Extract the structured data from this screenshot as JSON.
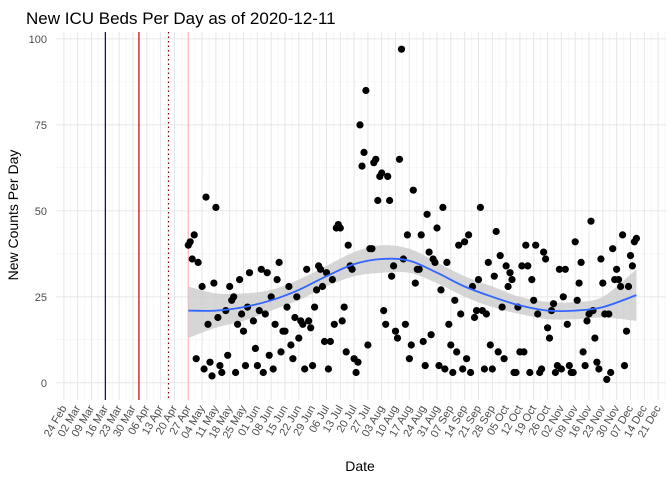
{
  "chart_data": {
    "type": "scatter",
    "title": "New ICU Beds Per Day as of 2020-12-11",
    "xlabel": "Date",
    "ylabel": "New Counts Per Day",
    "x_type": "date",
    "xlim": [
      "2020-02-20",
      "2020-12-25"
    ],
    "ylim": [
      -5,
      102
    ],
    "y_ticks": [
      0,
      25,
      50,
      75,
      100
    ],
    "x_ticks": [
      "2020-02-24",
      "2020-03-02",
      "2020-03-09",
      "2020-03-16",
      "2020-03-23",
      "2020-03-30",
      "2020-04-06",
      "2020-04-13",
      "2020-04-20",
      "2020-04-27",
      "2020-05-04",
      "2020-05-11",
      "2020-05-18",
      "2020-05-25",
      "2020-06-01",
      "2020-06-08",
      "2020-06-15",
      "2020-06-22",
      "2020-06-29",
      "2020-07-06",
      "2020-07-13",
      "2020-07-20",
      "2020-07-27",
      "2020-08-03",
      "2020-08-10",
      "2020-08-17",
      "2020-08-24",
      "2020-08-31",
      "2020-09-07",
      "2020-09-14",
      "2020-09-21",
      "2020-09-28",
      "2020-10-05",
      "2020-10-12",
      "2020-10-19",
      "2020-10-26",
      "2020-11-02",
      "2020-11-09",
      "2020-11-16",
      "2020-11-23",
      "2020-11-30",
      "2020-12-07",
      "2020-12-14",
      "2020-12-21"
    ],
    "x_tick_labels": [
      "24 Feb",
      "02 Mar",
      "09 Mar",
      "16 Mar",
      "23 Mar",
      "30 Mar",
      "06 Apr",
      "13 Apr",
      "20 Apr",
      "27 Apr",
      "04 May",
      "11 May",
      "18 May",
      "25 May",
      "01 Jun",
      "08 Jun",
      "15 Jun",
      "22 Jun",
      "29 Jun",
      "06 Jul",
      "13 Jul",
      "20 Jul",
      "27 Jul",
      "03 Aug",
      "10 Aug",
      "17 Aug",
      "24 Aug",
      "31 Aug",
      "07 Sep",
      "14 Sep",
      "21 Sep",
      "28 Sep",
      "05 Oct",
      "12 Oct",
      "19 Oct",
      "26 Oct",
      "02 Nov",
      "09 Nov",
      "16 Nov",
      "23 Nov",
      "30 Nov",
      "07 Dec",
      "14 Dec",
      "21 Dec"
    ],
    "grid": true,
    "vlines": [
      {
        "date": "2020-03-16",
        "color": "#000080",
        "style": "solid"
      },
      {
        "date": "2020-04-02",
        "color": "#cc0000",
        "style": "solid"
      },
      {
        "date": "2020-04-17",
        "color": "#8b0000",
        "style": "dotted"
      },
      {
        "date": "2020-04-27",
        "color": "#ffb6c1",
        "style": "solid"
      }
    ],
    "series": [
      {
        "points": [
          [
            "2020-04-27",
            40
          ],
          [
            "2020-04-28",
            41
          ],
          [
            "2020-04-29",
            36
          ],
          [
            "2020-04-30",
            43
          ],
          [
            "2020-05-01",
            7
          ],
          [
            "2020-05-02",
            35
          ],
          [
            "2020-05-04",
            28
          ],
          [
            "2020-05-05",
            4
          ],
          [
            "2020-05-06",
            54
          ],
          [
            "2020-05-07",
            17
          ],
          [
            "2020-05-08",
            6
          ],
          [
            "2020-05-09",
            2
          ],
          [
            "2020-05-10",
            29
          ],
          [
            "2020-05-11",
            51
          ],
          [
            "2020-05-12",
            19
          ],
          [
            "2020-05-13",
            5
          ],
          [
            "2020-05-14",
            3
          ],
          [
            "2020-05-16",
            21
          ],
          [
            "2020-05-17",
            8
          ],
          [
            "2020-05-18",
            28
          ],
          [
            "2020-05-19",
            24
          ],
          [
            "2020-05-20",
            25
          ],
          [
            "2020-05-21",
            3
          ],
          [
            "2020-05-22",
            17
          ],
          [
            "2020-05-23",
            30
          ],
          [
            "2020-05-24",
            20
          ],
          [
            "2020-05-25",
            15
          ],
          [
            "2020-05-26",
            5
          ],
          [
            "2020-05-27",
            22
          ],
          [
            "2020-05-28",
            32
          ],
          [
            "2020-05-30",
            18
          ],
          [
            "2020-05-31",
            10
          ],
          [
            "2020-06-01",
            5
          ],
          [
            "2020-06-02",
            21
          ],
          [
            "2020-06-03",
            33
          ],
          [
            "2020-06-04",
            3
          ],
          [
            "2020-06-05",
            20
          ],
          [
            "2020-06-06",
            32
          ],
          [
            "2020-06-07",
            8
          ],
          [
            "2020-06-08",
            25
          ],
          [
            "2020-06-09",
            4
          ],
          [
            "2020-06-10",
            17
          ],
          [
            "2020-06-11",
            30
          ],
          [
            "2020-06-12",
            35
          ],
          [
            "2020-06-13",
            9
          ],
          [
            "2020-06-14",
            15
          ],
          [
            "2020-06-15",
            15
          ],
          [
            "2020-06-16",
            22
          ],
          [
            "2020-06-17",
            28
          ],
          [
            "2020-06-18",
            11
          ],
          [
            "2020-06-19",
            7
          ],
          [
            "2020-06-20",
            19
          ],
          [
            "2020-06-21",
            25
          ],
          [
            "2020-06-22",
            13
          ],
          [
            "2020-06-23",
            18
          ],
          [
            "2020-06-24",
            17
          ],
          [
            "2020-06-25",
            4
          ],
          [
            "2020-06-26",
            33
          ],
          [
            "2020-06-27",
            18
          ],
          [
            "2020-06-28",
            16
          ],
          [
            "2020-06-29",
            5
          ],
          [
            "2020-06-30",
            22
          ],
          [
            "2020-07-01",
            27
          ],
          [
            "2020-07-02",
            34
          ],
          [
            "2020-07-03",
            33
          ],
          [
            "2020-07-04",
            28
          ],
          [
            "2020-07-05",
            12
          ],
          [
            "2020-07-06",
            32
          ],
          [
            "2020-07-07",
            4
          ],
          [
            "2020-07-08",
            12
          ],
          [
            "2020-07-09",
            30
          ],
          [
            "2020-07-10",
            17
          ],
          [
            "2020-07-11",
            45
          ],
          [
            "2020-07-12",
            46
          ],
          [
            "2020-07-13",
            45
          ],
          [
            "2020-07-14",
            18
          ],
          [
            "2020-07-15",
            22
          ],
          [
            "2020-07-16",
            9
          ],
          [
            "2020-07-17",
            40
          ],
          [
            "2020-07-18",
            34
          ],
          [
            "2020-07-19",
            33
          ],
          [
            "2020-07-20",
            7
          ],
          [
            "2020-07-21",
            3
          ],
          [
            "2020-07-22",
            6
          ],
          [
            "2020-07-23",
            75
          ],
          [
            "2020-07-24",
            63
          ],
          [
            "2020-07-25",
            67
          ],
          [
            "2020-07-26",
            85
          ],
          [
            "2020-07-27",
            11
          ],
          [
            "2020-07-28",
            39
          ],
          [
            "2020-07-29",
            39
          ],
          [
            "2020-07-30",
            64
          ],
          [
            "2020-07-31",
            65
          ],
          [
            "2020-08-01",
            53
          ],
          [
            "2020-08-02",
            60
          ],
          [
            "2020-08-03",
            61
          ],
          [
            "2020-08-04",
            21
          ],
          [
            "2020-08-05",
            17
          ],
          [
            "2020-08-06",
            60
          ],
          [
            "2020-08-07",
            53
          ],
          [
            "2020-08-08",
            31
          ],
          [
            "2020-08-09",
            34
          ],
          [
            "2020-08-10",
            15
          ],
          [
            "2020-08-11",
            13
          ],
          [
            "2020-08-12",
            65
          ],
          [
            "2020-08-13",
            97
          ],
          [
            "2020-08-14",
            36
          ],
          [
            "2020-08-15",
            17
          ],
          [
            "2020-08-16",
            43
          ],
          [
            "2020-08-17",
            7
          ],
          [
            "2020-08-18",
            11
          ],
          [
            "2020-08-19",
            56
          ],
          [
            "2020-08-20",
            29
          ],
          [
            "2020-08-21",
            33
          ],
          [
            "2020-08-22",
            33
          ],
          [
            "2020-08-23",
            43
          ],
          [
            "2020-08-24",
            12
          ],
          [
            "2020-08-25",
            5
          ],
          [
            "2020-08-26",
            49
          ],
          [
            "2020-08-27",
            38
          ],
          [
            "2020-08-28",
            14
          ],
          [
            "2020-08-29",
            36
          ],
          [
            "2020-08-30",
            35
          ],
          [
            "2020-08-31",
            45
          ],
          [
            "2020-09-01",
            5
          ],
          [
            "2020-09-02",
            27
          ],
          [
            "2020-09-03",
            51
          ],
          [
            "2020-09-04",
            4
          ],
          [
            "2020-09-05",
            35
          ],
          [
            "2020-09-06",
            17
          ],
          [
            "2020-09-07",
            11
          ],
          [
            "2020-09-08",
            3
          ],
          [
            "2020-09-09",
            24
          ],
          [
            "2020-09-10",
            9
          ],
          [
            "2020-09-11",
            40
          ],
          [
            "2020-09-12",
            20
          ],
          [
            "2020-09-13",
            4
          ],
          [
            "2020-09-14",
            41
          ],
          [
            "2020-09-15",
            7
          ],
          [
            "2020-09-16",
            43
          ],
          [
            "2020-09-17",
            3
          ],
          [
            "2020-09-18",
            28
          ],
          [
            "2020-09-19",
            19
          ],
          [
            "2020-09-20",
            21
          ],
          [
            "2020-09-21",
            30
          ],
          [
            "2020-09-22",
            51
          ],
          [
            "2020-09-23",
            21
          ],
          [
            "2020-09-24",
            4
          ],
          [
            "2020-09-25",
            20
          ],
          [
            "2020-09-26",
            35
          ],
          [
            "2020-09-27",
            11
          ],
          [
            "2020-09-28",
            4
          ],
          [
            "2020-09-29",
            31
          ],
          [
            "2020-09-30",
            44
          ],
          [
            "2020-10-01",
            9
          ],
          [
            "2020-10-02",
            37
          ],
          [
            "2020-10-03",
            22
          ],
          [
            "2020-10-04",
            7
          ],
          [
            "2020-10-05",
            34
          ],
          [
            "2020-10-06",
            28
          ],
          [
            "2020-10-07",
            32
          ],
          [
            "2020-10-08",
            30
          ],
          [
            "2020-10-09",
            3
          ],
          [
            "2020-10-10",
            3
          ],
          [
            "2020-10-11",
            22
          ],
          [
            "2020-10-12",
            9
          ],
          [
            "2020-10-13",
            34
          ],
          [
            "2020-10-14",
            9
          ],
          [
            "2020-10-15",
            40
          ],
          [
            "2020-10-16",
            34
          ],
          [
            "2020-10-17",
            3
          ],
          [
            "2020-10-18",
            30
          ],
          [
            "2020-10-19",
            24
          ],
          [
            "2020-10-20",
            40
          ],
          [
            "2020-10-21",
            20
          ],
          [
            "2020-10-22",
            3
          ],
          [
            "2020-10-23",
            4
          ],
          [
            "2020-10-24",
            38
          ],
          [
            "2020-10-25",
            36
          ],
          [
            "2020-10-26",
            16
          ],
          [
            "2020-10-27",
            13
          ],
          [
            "2020-10-28",
            21
          ],
          [
            "2020-10-29",
            23
          ],
          [
            "2020-10-30",
            3
          ],
          [
            "2020-10-31",
            5
          ],
          [
            "2020-11-01",
            33
          ],
          [
            "2020-11-02",
            4
          ],
          [
            "2020-11-03",
            25
          ],
          [
            "2020-11-04",
            33
          ],
          [
            "2020-11-05",
            17
          ],
          [
            "2020-11-06",
            5
          ],
          [
            "2020-11-07",
            3
          ],
          [
            "2020-11-08",
            3
          ],
          [
            "2020-11-09",
            41
          ],
          [
            "2020-11-10",
            24
          ],
          [
            "2020-11-11",
            29
          ],
          [
            "2020-11-12",
            35
          ],
          [
            "2020-11-13",
            9
          ],
          [
            "2020-11-14",
            5
          ],
          [
            "2020-11-15",
            18
          ],
          [
            "2020-11-16",
            20
          ],
          [
            "2020-11-17",
            47
          ],
          [
            "2020-11-18",
            21
          ],
          [
            "2020-11-19",
            13
          ],
          [
            "2020-11-20",
            6
          ],
          [
            "2020-11-21",
            4
          ],
          [
            "2020-11-22",
            36
          ],
          [
            "2020-11-23",
            29
          ],
          [
            "2020-11-24",
            20
          ],
          [
            "2020-11-25",
            1
          ],
          [
            "2020-11-26",
            20
          ],
          [
            "2020-11-27",
            3
          ],
          [
            "2020-11-28",
            39
          ],
          [
            "2020-11-29",
            30
          ],
          [
            "2020-11-30",
            33
          ],
          [
            "2020-12-01",
            30
          ],
          [
            "2020-12-02",
            28
          ],
          [
            "2020-12-03",
            43
          ],
          [
            "2020-12-04",
            5
          ],
          [
            "2020-12-05",
            15
          ],
          [
            "2020-12-06",
            28
          ],
          [
            "2020-12-07",
            37
          ],
          [
            "2020-12-08",
            34
          ],
          [
            "2020-12-09",
            41
          ],
          [
            "2020-12-10",
            42
          ]
        ],
        "color": "#000000"
      }
    ],
    "smooth": {
      "color": "#3366ff",
      "band_color": "#cccccc",
      "points": [
        [
          "2020-04-27",
          21,
          13,
          28
        ],
        [
          "2020-05-11",
          21,
          16,
          26
        ],
        [
          "2020-05-25",
          22,
          18,
          26
        ],
        [
          "2020-06-08",
          24,
          21,
          27
        ],
        [
          "2020-06-22",
          27,
          24,
          30
        ],
        [
          "2020-07-06",
          31,
          28,
          34
        ],
        [
          "2020-07-20",
          34.5,
          31,
          38
        ],
        [
          "2020-08-03",
          36,
          32,
          40
        ],
        [
          "2020-08-17",
          35.5,
          32,
          39
        ],
        [
          "2020-08-31",
          32,
          29,
          35
        ],
        [
          "2020-09-14",
          28,
          25,
          31
        ],
        [
          "2020-09-28",
          25,
          22,
          28
        ],
        [
          "2020-10-12",
          22.5,
          20,
          25
        ],
        [
          "2020-10-26",
          21,
          18.5,
          23.5
        ],
        [
          "2020-11-09",
          21,
          18.5,
          23.5
        ],
        [
          "2020-11-23",
          22,
          19,
          25
        ],
        [
          "2020-12-10",
          25.5,
          18,
          33
        ]
      ]
    }
  }
}
